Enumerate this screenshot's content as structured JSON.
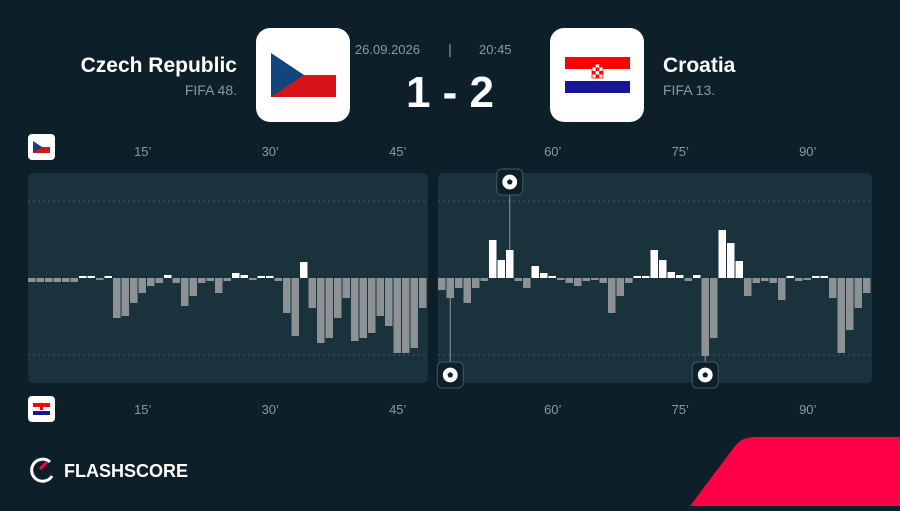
{
  "header": {
    "home": {
      "name": "Czech Republic",
      "rank": "FIFA 48."
    },
    "away": {
      "name": "Croatia",
      "rank": "FIFA 13."
    },
    "date": "26.09.2026",
    "time": "20:45",
    "score": "1 - 2",
    "brand": "FLASHSCORE"
  },
  "chart_data": {
    "type": "bar",
    "halves": [
      {
        "x": [
          1,
          2,
          3,
          4,
          5,
          6,
          7,
          8,
          9,
          10,
          11,
          12,
          13,
          14,
          15,
          16,
          17,
          18,
          19,
          20,
          21,
          22,
          23,
          24,
          25,
          26,
          27,
          28,
          29,
          30,
          31,
          32,
          33,
          34,
          35,
          36,
          37,
          38,
          39,
          40,
          41,
          42,
          43,
          44,
          45,
          46,
          47
        ],
        "values": [
          -4,
          -4,
          -4,
          -4,
          -4,
          -4,
          2,
          2,
          -2,
          2,
          -40,
          -38,
          -25,
          -15,
          -8,
          -5,
          3,
          -5,
          -28,
          -18,
          -5,
          -3,
          -15,
          -3,
          5,
          3,
          -2,
          2,
          2,
          -3,
          -35,
          -58,
          16,
          -30,
          -65,
          -60,
          -40,
          -20,
          -63,
          -60,
          -55,
          -38,
          -48,
          -75,
          -75,
          -70,
          -30
        ],
        "home_goals": [],
        "away_goals": []
      },
      {
        "x": [
          46,
          47,
          48,
          49,
          50,
          51,
          52,
          53,
          54,
          55,
          56,
          57,
          58,
          59,
          60,
          61,
          62,
          63,
          64,
          65,
          66,
          67,
          68,
          69,
          70,
          71,
          72,
          73,
          74,
          75,
          76,
          77,
          78,
          79,
          80,
          81,
          82,
          83,
          84,
          85,
          86,
          87,
          88,
          89,
          90,
          91,
          92,
          93,
          94,
          95,
          96
        ],
        "values": [
          -12,
          -20,
          -10,
          -25,
          -10,
          -3,
          38,
          18,
          28,
          -3,
          -10,
          12,
          5,
          2,
          -2,
          -5,
          -8,
          -3,
          -2,
          -5,
          -35,
          -18,
          -5,
          2,
          2,
          28,
          18,
          6,
          3,
          -3,
          3,
          -78,
          -60,
          48,
          35,
          17,
          -18,
          -5,
          -3,
          -5,
          -22,
          2,
          -3,
          -2,
          2,
          2,
          -20,
          -75,
          -52,
          -30,
          -15
        ],
        "home_goals": [
          54
        ],
        "away_goals": [
          47,
          77
        ]
      }
    ],
    "xticks": [
      {
        "value": 15,
        "label": "15’"
      },
      {
        "value": 30,
        "label": "30’"
      },
      {
        "value": 45,
        "label": "45’"
      },
      {
        "value": 60,
        "label": "60’"
      },
      {
        "value": 75,
        "label": "75’"
      },
      {
        "value": 90,
        "label": "90’"
      }
    ],
    "ylim": [
      -105,
      105
    ],
    "gridlines": [
      -77,
      77
    ],
    "up_color": "#ffffff",
    "down_color": "#8c9193"
  }
}
